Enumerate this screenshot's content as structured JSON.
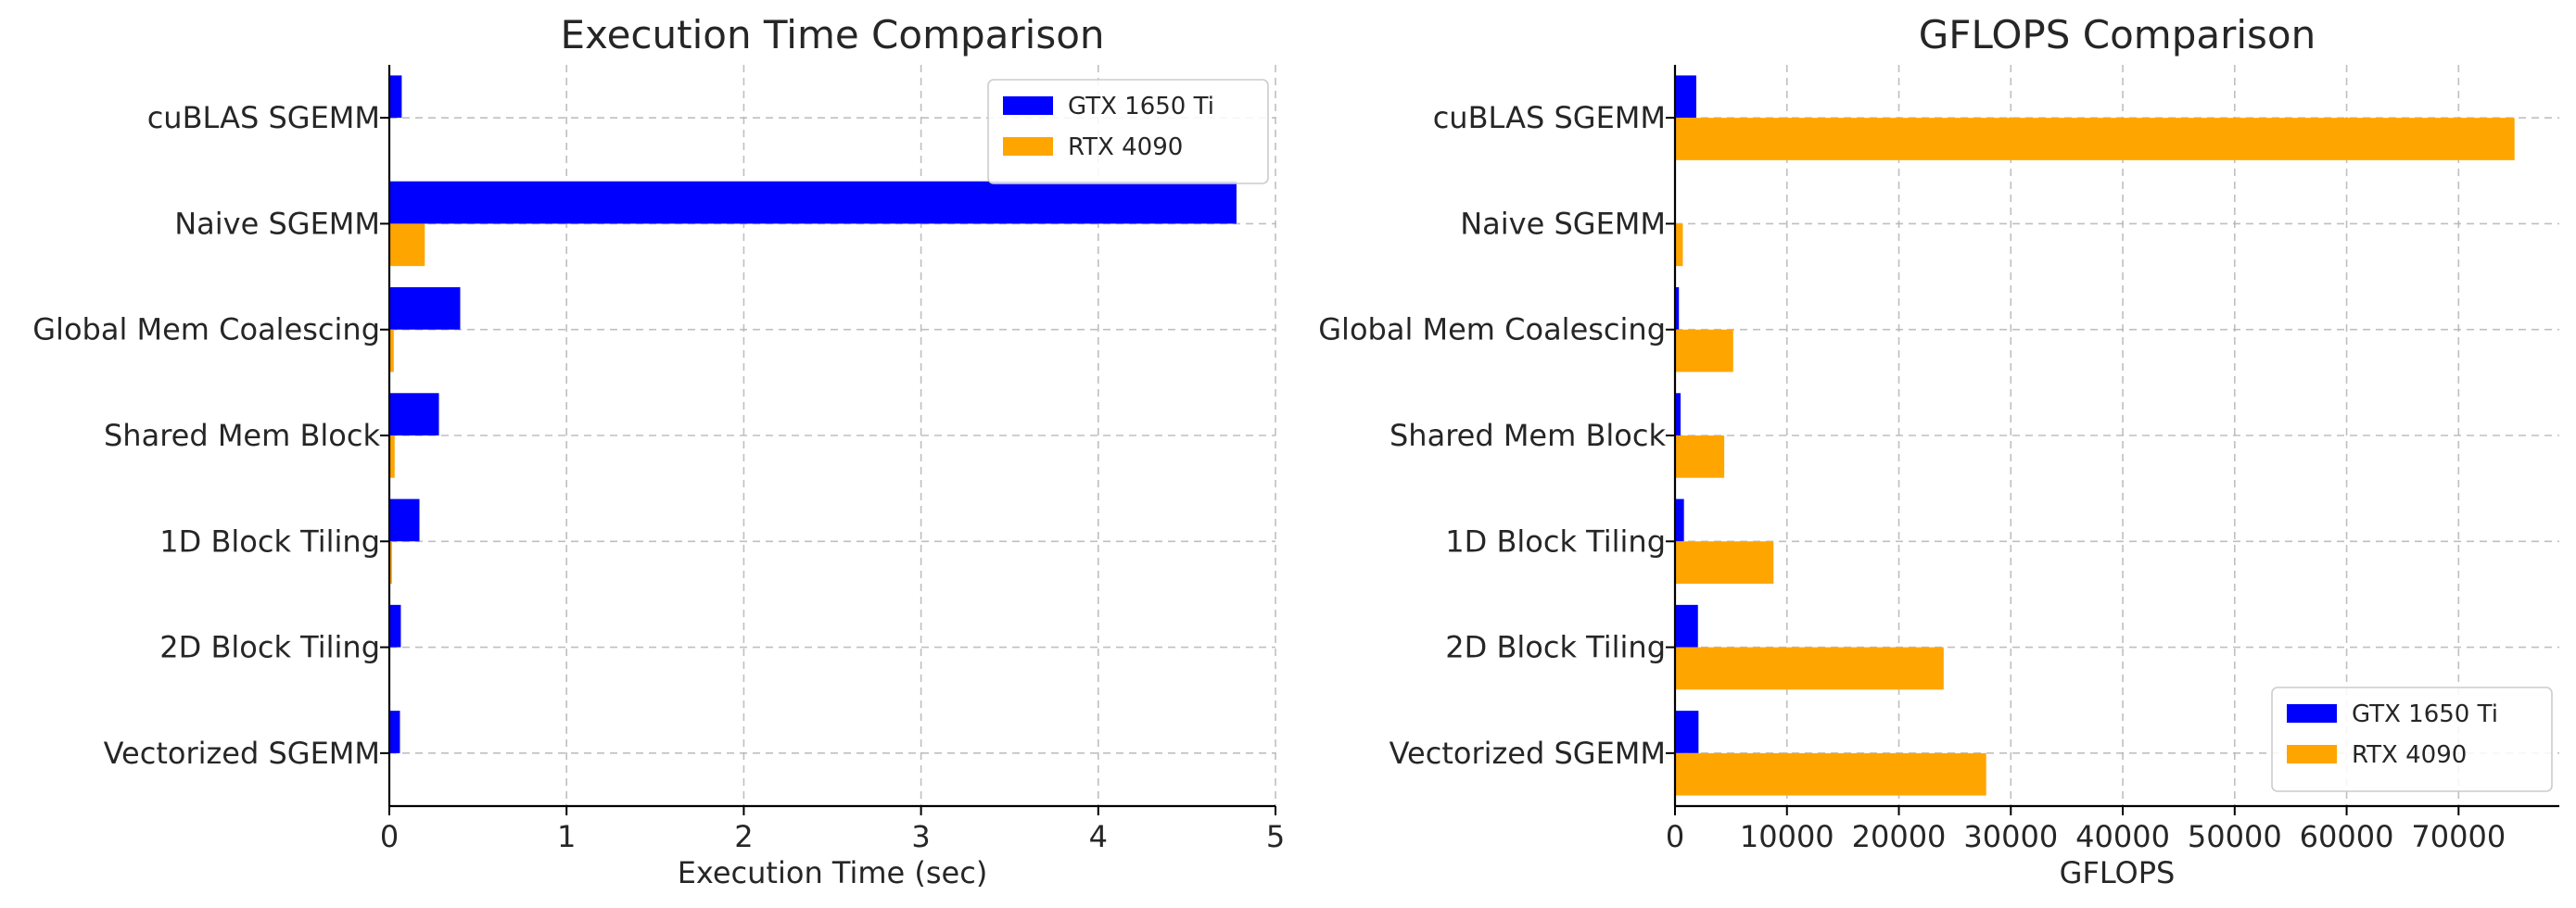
{
  "chart_data": [
    {
      "type": "bar",
      "orientation": "horizontal",
      "title": "Execution Time Comparison",
      "xlabel": "Execution Time (sec)",
      "ylabel": "",
      "categories": [
        "cuBLAS SGEMM",
        "Naive SGEMM",
        "Global Mem Coalescing",
        "Shared Mem Block",
        "1D Block Tiling",
        "2D Block Tiling",
        "Vectorized SGEMM"
      ],
      "series": [
        {
          "name": "GTX 1650 Ti",
          "color": "#0000ff",
          "values": [
            0.07,
            4.78,
            0.4,
            0.28,
            0.17,
            0.065,
            0.06
          ]
        },
        {
          "name": "RTX 4090",
          "color": "#ffa500",
          "values": [
            0.002,
            0.2,
            0.025,
            0.03,
            0.015,
            0.005,
            0.005
          ]
        }
      ],
      "xlim": [
        0,
        5
      ],
      "xticks": [
        "0",
        "1",
        "2",
        "3",
        "4",
        "5"
      ],
      "grid": true,
      "legend": "top-right"
    },
    {
      "type": "bar",
      "orientation": "horizontal",
      "title": "GFLOPS Comparison",
      "xlabel": "GFLOPS",
      "ylabel": "",
      "categories": [
        "cuBLAS SGEMM",
        "Naive SGEMM",
        "Global Mem Coalescing",
        "Shared Mem Block",
        "1D Block Tiling",
        "2D Block Tiling",
        "Vectorized SGEMM"
      ],
      "series": [
        {
          "name": "GTX 1650 Ti",
          "color": "#0000ff",
          "values": [
            1900,
            30,
            350,
            500,
            800,
            2050,
            2100
          ]
        },
        {
          "name": "RTX 4090",
          "color": "#ffa500",
          "values": [
            75000,
            700,
            5200,
            4400,
            8800,
            24000,
            27800
          ]
        }
      ],
      "xlim": [
        0,
        79000
      ],
      "xticks": [
        "0",
        "10000",
        "20000",
        "30000",
        "40000",
        "50000",
        "60000",
        "70000"
      ],
      "grid": true,
      "legend": "bottom-right"
    }
  ]
}
